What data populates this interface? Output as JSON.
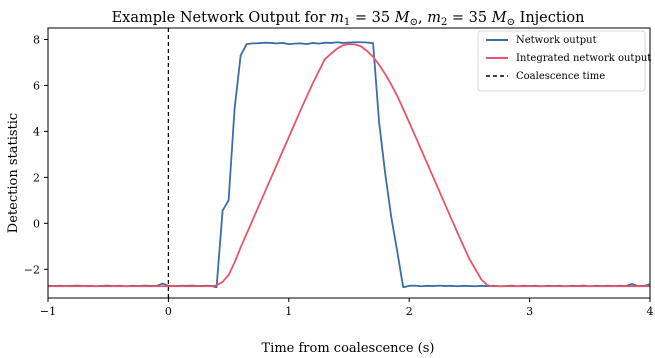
{
  "chart_data": {
    "type": "line",
    "title_parts": {
      "prefix": "Example Network Output for ",
      "m1_symbol": "m",
      "m1_sub": "1",
      "eq1": " = 35 ",
      "m_unit1": "M",
      "sun1": "⊙",
      "sep": ", ",
      "m2_symbol": "m",
      "m2_sub": "2",
      "eq2": " = 35 ",
      "m_unit2": "M",
      "sun2": "⊙",
      "suffix": " Injection"
    },
    "xlabel": "Time from coalescence (s)",
    "ylabel": "Detection statistic",
    "xlim": [
      -1,
      4
    ],
    "ylim": [
      -3.25,
      8.5
    ],
    "xticks": [
      -1,
      0,
      1,
      2,
      3,
      4
    ],
    "yticks": [
      -2,
      0,
      2,
      4,
      6,
      8
    ],
    "ytick_labels": [
      "−2",
      "0",
      "2",
      "4",
      "6",
      "8"
    ],
    "xtick_labels": [
      "−1",
      "0",
      "1",
      "2",
      "3",
      "4"
    ],
    "grid": false,
    "legend_position": "top-right",
    "vline": {
      "x": 0,
      "name": "Coalescence time",
      "color": "#000000",
      "style": "dashed"
    },
    "series": [
      {
        "name": "Network output",
        "color": "#3a6ea5",
        "x": [
          -1.0,
          -0.95,
          -0.9,
          -0.85,
          -0.8,
          -0.75,
          -0.7,
          -0.65,
          -0.6,
          -0.55,
          -0.5,
          -0.45,
          -0.4,
          -0.35,
          -0.3,
          -0.25,
          -0.2,
          -0.15,
          -0.1,
          -0.05,
          0.0,
          0.05,
          0.1,
          0.15,
          0.2,
          0.25,
          0.3,
          0.35,
          0.4,
          0.45,
          0.5,
          0.55,
          0.6,
          0.65,
          0.7,
          0.75,
          0.8,
          0.85,
          0.9,
          0.95,
          1.0,
          1.05,
          1.1,
          1.15,
          1.2,
          1.25,
          1.3,
          1.35,
          1.4,
          1.45,
          1.5,
          1.55,
          1.6,
          1.65,
          1.7,
          1.75,
          1.8,
          1.85,
          1.9,
          1.95,
          2.0,
          2.05,
          2.1,
          2.15,
          2.2,
          2.25,
          2.3,
          2.35,
          2.4,
          2.45,
          2.5,
          2.55,
          2.6,
          2.65,
          2.7,
          2.75,
          2.8,
          2.85,
          2.9,
          2.95,
          3.0,
          3.05,
          3.1,
          3.15,
          3.2,
          3.25,
          3.3,
          3.35,
          3.4,
          3.45,
          3.5,
          3.55,
          3.6,
          3.65,
          3.7,
          3.75,
          3.8,
          3.85,
          3.9,
          3.95,
          4.0
        ],
        "y": [
          -2.72,
          -2.73,
          -2.72,
          -2.73,
          -2.72,
          -2.71,
          -2.73,
          -2.72,
          -2.74,
          -2.72,
          -2.71,
          -2.73,
          -2.72,
          -2.74,
          -2.72,
          -2.73,
          -2.71,
          -2.72,
          -2.73,
          -2.62,
          -2.72,
          -2.73,
          -2.72,
          -2.72,
          -2.71,
          -2.73,
          -2.72,
          -2.72,
          -2.78,
          0.55,
          1.0,
          5.0,
          7.3,
          7.8,
          7.83,
          7.84,
          7.86,
          7.85,
          7.83,
          7.85,
          7.8,
          7.82,
          7.83,
          7.8,
          7.85,
          7.82,
          7.86,
          7.85,
          7.88,
          7.85,
          7.87,
          7.88,
          7.88,
          7.87,
          7.84,
          4.4,
          2.2,
          0.3,
          -1.2,
          -2.78,
          -2.72,
          -2.71,
          -2.74,
          -2.72,
          -2.73,
          -2.71,
          -2.73,
          -2.72,
          -2.74,
          -2.72,
          -2.73,
          -2.74,
          -2.72,
          -2.73,
          -2.72,
          -2.74,
          -2.73,
          -2.71,
          -2.74,
          -2.72,
          -2.73,
          -2.72,
          -2.74,
          -2.72,
          -2.73,
          -2.72,
          -2.74,
          -2.72,
          -2.73,
          -2.71,
          -2.74,
          -2.72,
          -2.73,
          -2.72,
          -2.73,
          -2.72,
          -2.73,
          -2.64,
          -2.73,
          -2.72,
          -2.65
        ]
      },
      {
        "name": "Integrated network output",
        "color": "#e8556a",
        "x": [
          -1.0,
          -0.9,
          -0.8,
          -0.7,
          -0.6,
          -0.5,
          -0.4,
          -0.3,
          -0.2,
          -0.1,
          0.0,
          0.1,
          0.2,
          0.3,
          0.35,
          0.4,
          0.45,
          0.5,
          0.55,
          0.6,
          0.7,
          0.8,
          0.9,
          1.0,
          1.1,
          1.2,
          1.3,
          1.4,
          1.45,
          1.5,
          1.55,
          1.6,
          1.65,
          1.7,
          1.75,
          1.8,
          1.85,
          1.9,
          2.0,
          2.1,
          2.2,
          2.3,
          2.4,
          2.5,
          2.6,
          2.65,
          2.7,
          2.75,
          2.8,
          2.9,
          3.0,
          3.1,
          3.2,
          3.3,
          3.4,
          3.5,
          3.6,
          3.7,
          3.8,
          3.9,
          4.0
        ],
        "y": [
          -2.74,
          -2.74,
          -2.74,
          -2.74,
          -2.74,
          -2.74,
          -2.74,
          -2.74,
          -2.74,
          -2.74,
          -2.74,
          -2.74,
          -2.74,
          -2.74,
          -2.74,
          -2.7,
          -2.55,
          -2.25,
          -1.7,
          -1.05,
          0.15,
          1.35,
          2.55,
          3.75,
          4.95,
          6.1,
          7.15,
          7.6,
          7.75,
          7.8,
          7.78,
          7.7,
          7.5,
          7.25,
          6.9,
          6.5,
          6.05,
          5.55,
          4.4,
          3.2,
          2.0,
          0.8,
          -0.4,
          -1.55,
          -2.45,
          -2.7,
          -2.74,
          -2.74,
          -2.74,
          -2.74,
          -2.74,
          -2.74,
          -2.74,
          -2.74,
          -2.74,
          -2.74,
          -2.74,
          -2.74,
          -2.74,
          -2.74,
          -2.74
        ]
      }
    ]
  }
}
